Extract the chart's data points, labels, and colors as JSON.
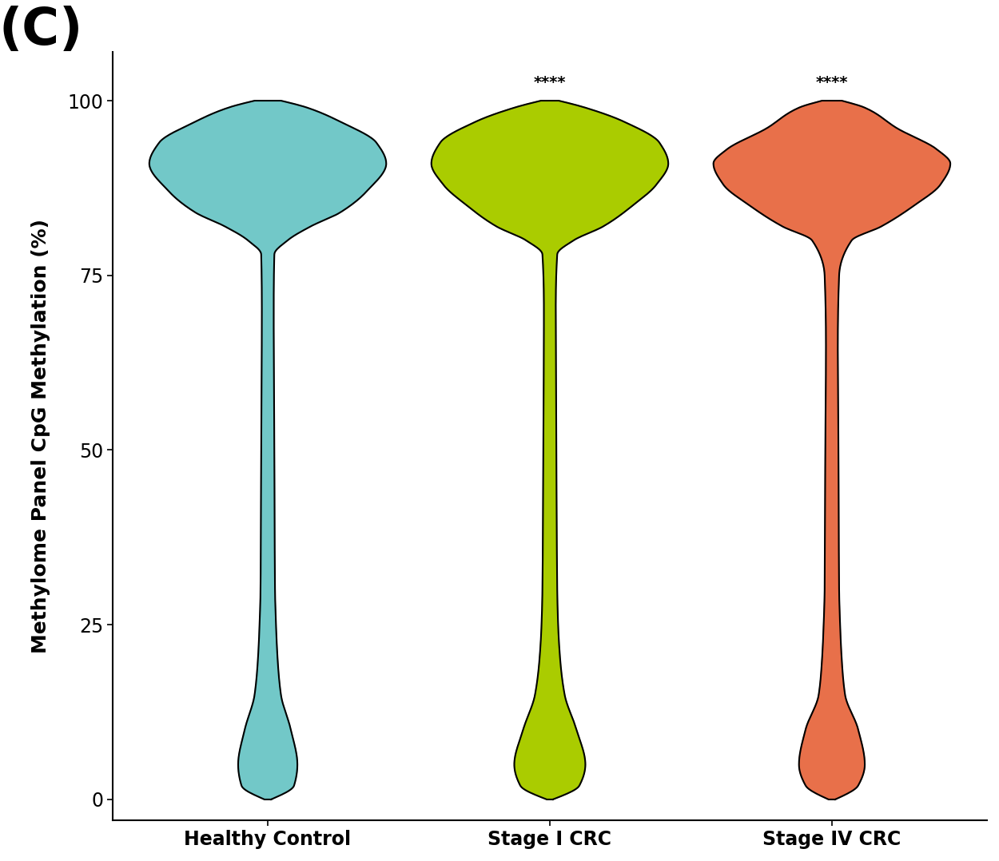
{
  "categories": [
    "Healthy Control",
    "Stage I CRC",
    "Stage IV CRC"
  ],
  "violin_colors": [
    "#72C8C8",
    "#AACC00",
    "#E8704A"
  ],
  "ylabel": "Methylome Panel CpG Methylation (%)",
  "panel_label": "(C)",
  "annotations": [
    "",
    "****",
    "****"
  ],
  "ylim": [
    0,
    100
  ],
  "yticks": [
    0,
    25,
    50,
    75,
    100
  ],
  "background_color": "#ffffff",
  "label_fontsize": 18,
  "tick_fontsize": 17,
  "annotation_fontsize": 14,
  "panel_fontsize": 46
}
